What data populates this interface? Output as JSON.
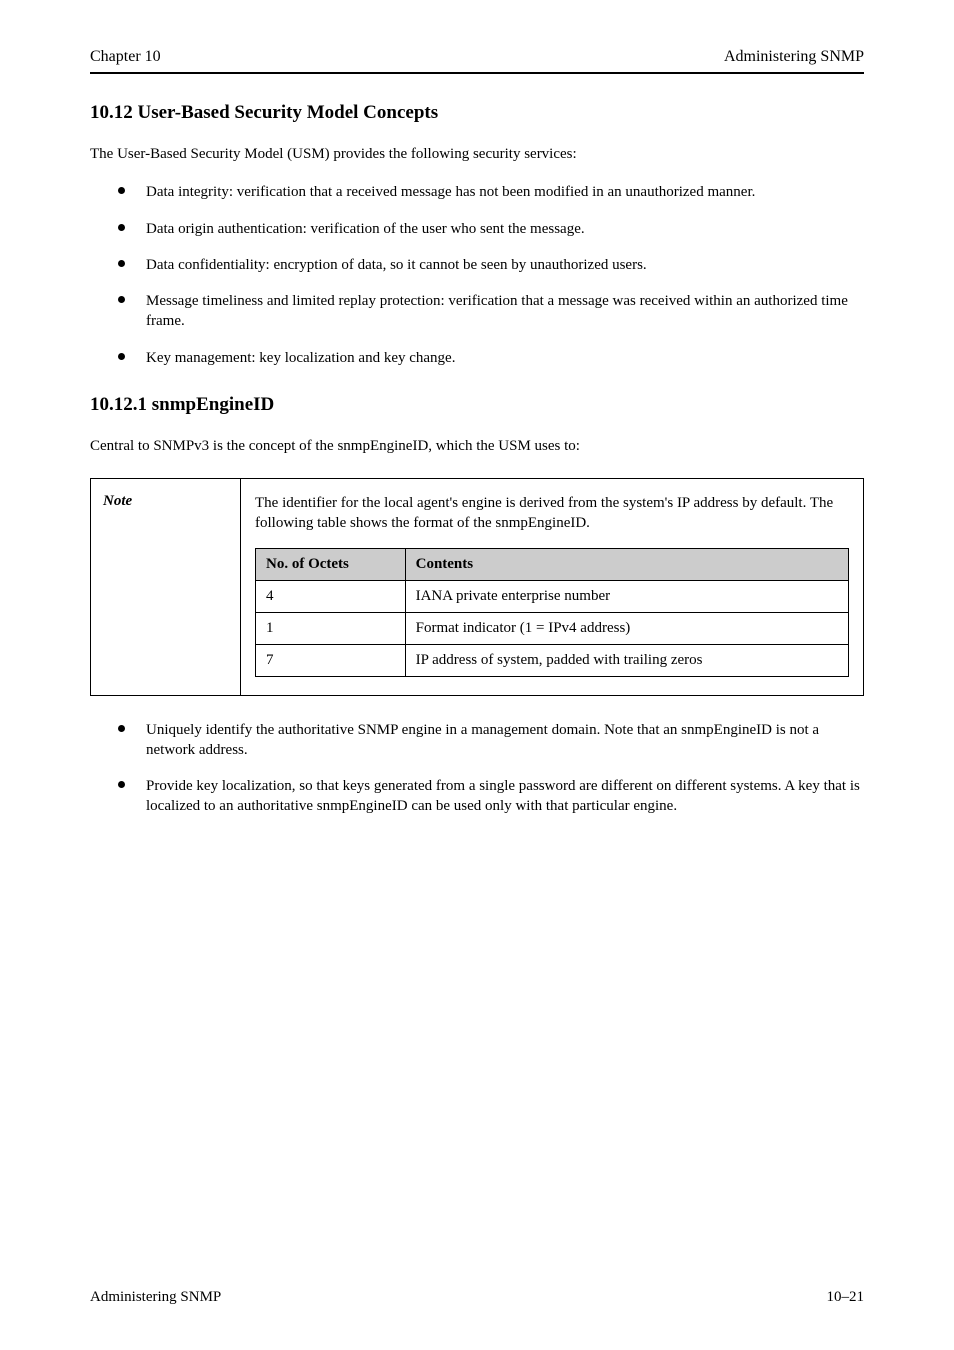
{
  "header": {
    "left": "Chapter 10",
    "right": "Administering SNMP"
  },
  "section1": {
    "title": "10.12 User-Based Security Model Concepts",
    "intro": "The User-Based Security Model (USM) provides the following security services:",
    "bullets": [
      "Data integrity: verification that a received message has not been modified in an unauthorized manner.",
      "Data origin authentication: verification of the user who sent the message.",
      "Data confidentiality: encryption of data, so it cannot be seen by unauthorized users.",
      "Message timeliness and limited replay protection: verification that a message was received within an authorized time frame.",
      "Key management: key localization and key change."
    ]
  },
  "section2": {
    "title": "10.12.1 snmpEngineID",
    "intro": "Central to SNMPv3 is the concept of the snmpEngineID, which the USM uses to:",
    "noteLabel": "Note",
    "noteLead": "The identifier for the local agent's engine is derived from the system's IP address by default. The following table shows the format of the snmpEngineID.",
    "table": {
      "columns": [
        "No. of Octets",
        "Contents"
      ],
      "rows": [
        [
          "4",
          "IANA private enterprise number"
        ],
        [
          "1",
          "Format indicator (1 = IPv4 address)"
        ],
        [
          "7",
          "IP address of system, padded with trailing zeros"
        ]
      ]
    },
    "bullets2": [
      "Uniquely identify the authoritative SNMP engine in a management domain. Note that an snmpEngineID is not a network address.",
      "Provide key localization, so that keys generated from a single password are different on different systems. A key that is localized to an authoritative snmpEngineID can be used only with that particular engine."
    ]
  },
  "footer": {
    "left": "Administering SNMP",
    "right": "10–21"
  }
}
